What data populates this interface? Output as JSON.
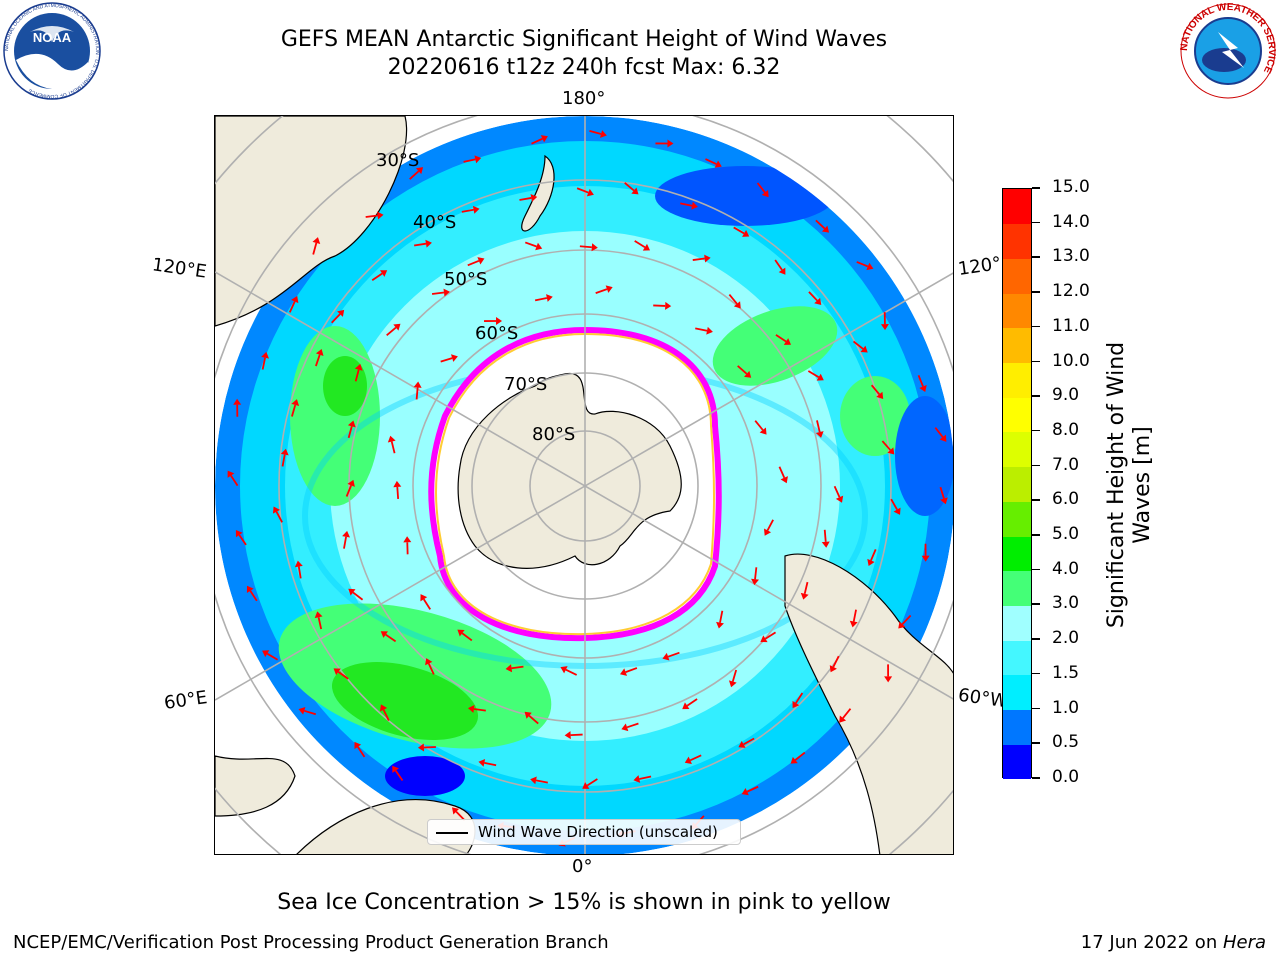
{
  "title": {
    "line1": "GEFS MEAN Antarctic Significant Height of Wind Waves",
    "line2": "20220616 t12z 240h fcst   Max: 6.32"
  },
  "map": {
    "projection": "south-polar-stereographic",
    "lon_labels": {
      "top": "180°",
      "bottom": "0°",
      "left_upper": "120°E",
      "right_upper": "120°",
      "left_lower": "60°E",
      "right_lower": "60°W"
    },
    "lat_labels": [
      "30°S",
      "40°S",
      "50°S",
      "60°S",
      "70°S",
      "80°S"
    ],
    "legend_label": "Wind Wave Direction (unscaled)",
    "arrow_color": "#ff0000",
    "land_color": "#efebdc",
    "ice_edge_colors": [
      "#ff00ff",
      "#ffcc33"
    ]
  },
  "colorbar": {
    "label": "Significant Height of Wind Waves [m]",
    "label_line1": "Significant Height of Wind",
    "label_line2": "Waves [m]",
    "ticks": [
      "0.0",
      "0.5",
      "1.0",
      "1.5",
      "2.0",
      "3.0",
      "4.0",
      "5.0",
      "6.0",
      "7.0",
      "8.0",
      "9.0",
      "10.0",
      "11.0",
      "12.0",
      "13.0",
      "14.0",
      "15.0"
    ],
    "colors": [
      "#0000ff",
      "#0077ff",
      "#00eeff",
      "#44f7ff",
      "#a0ffff",
      "#44ff77",
      "#00ee00",
      "#66ee00",
      "#bbee00",
      "#ddff00",
      "#ffff00",
      "#ffee00",
      "#ffbb00",
      "#ff8800",
      "#ff6600",
      "#ff3300",
      "#ff0000"
    ]
  },
  "notes": {
    "sea_ice": "Sea Ice Concentration > 15% is shown in pink to yellow",
    "credit_left": "NCEP/EMC/Verification Post Processing Product Generation Branch",
    "date": "17 Jun 2022 on ",
    "machine": "Hera"
  },
  "logos": {
    "noaa": "NOAA",
    "noaa_ring": "NATIONAL OCEANIC AND ATMOSPHERIC ADMINISTRATION · U.S. DEPARTMENT OF COMMERCE",
    "nws_ring": "NATIONAL WEATHER SERVICE"
  }
}
